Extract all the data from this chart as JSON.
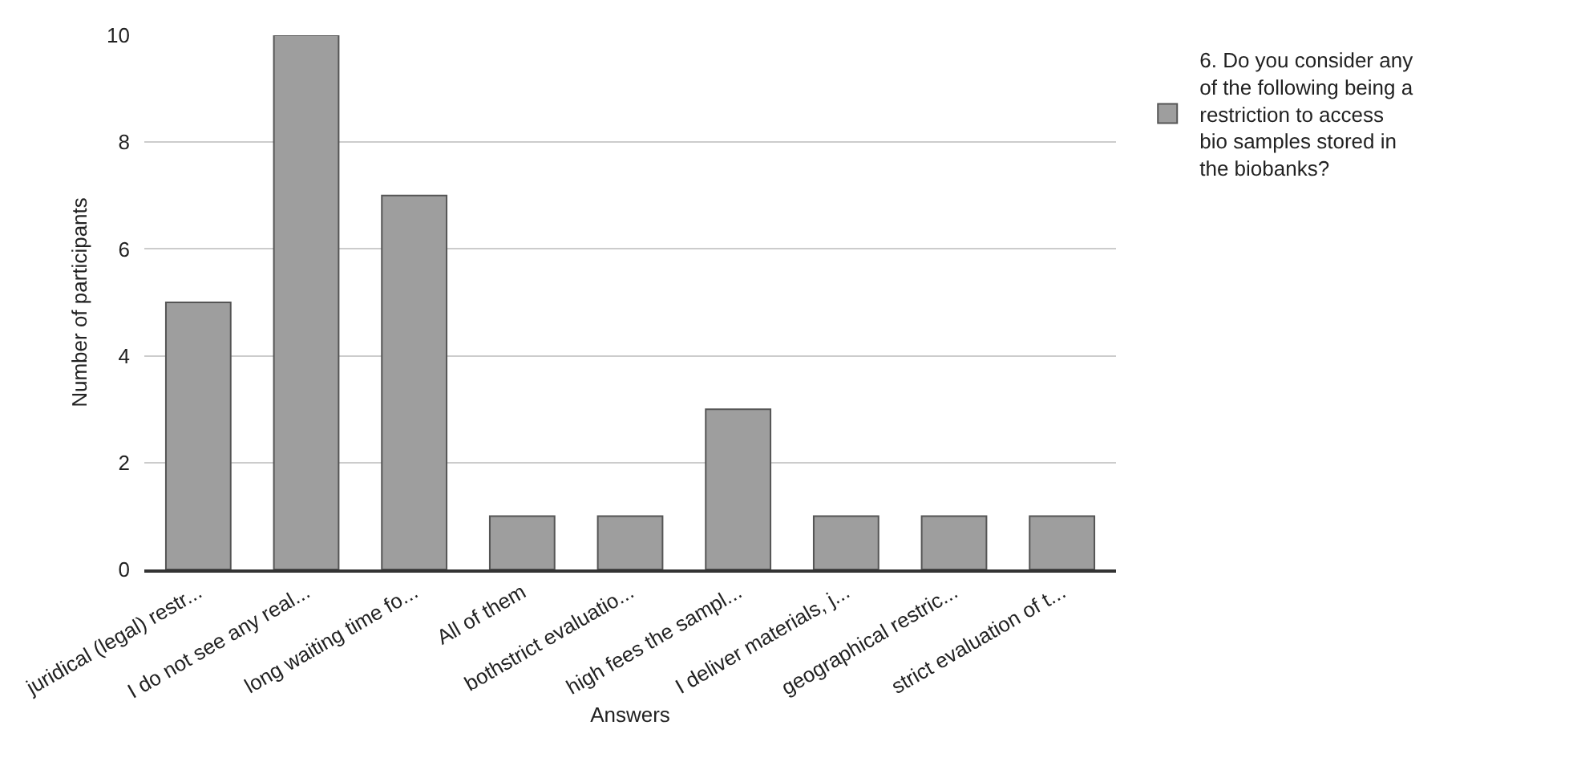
{
  "chart_data": {
    "type": "bar",
    "xlabel": "Answers",
    "ylabel": "Number of participants",
    "categories": [
      "juridical (legal) restr...",
      "I do not see any real...",
      "long waiting time fo...",
      "All of them",
      "bothstrict evaluatio...",
      "high fees the sampl...",
      "I deliver materials, j...",
      "geographical restric...",
      "strict evaluation of t..."
    ],
    "series": [
      {
        "name": "6. Do you consider any of the following being a restriction to access bio samples stored in the biobanks?",
        "color": "#9e9e9e",
        "values": [
          5,
          10,
          7,
          1,
          1,
          3,
          1,
          1,
          1
        ]
      }
    ],
    "ylim": [
      0,
      10
    ],
    "yticks": [
      0,
      2,
      4,
      6,
      8,
      10
    ],
    "grid": "y",
    "legend": "top right"
  }
}
